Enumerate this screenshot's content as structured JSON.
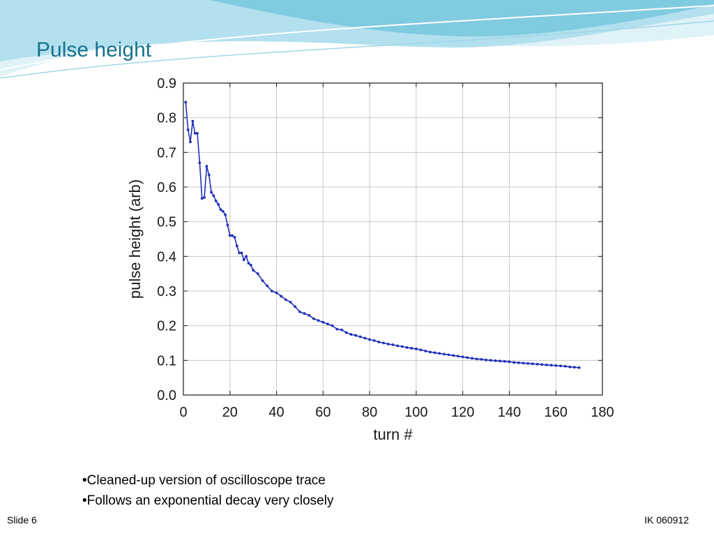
{
  "slide": {
    "title": "Pulse height",
    "bullets": [
      "Cleaned-up version of oscilloscope trace",
      "Follows an exponential decay very closely"
    ],
    "footer_left": "Slide 6",
    "footer_right": "IK 060912",
    "colors": {
      "title": "#17728f",
      "wave_light": "#b9e3ef",
      "wave_mid": "#7fcbe0",
      "wave_dark": "#3fa9c9"
    }
  },
  "chart_data": {
    "type": "line",
    "title": "",
    "xlabel": "turn #",
    "ylabel": "pulse height (arb)",
    "xlim": [
      0,
      180
    ],
    "ylim": [
      0.0,
      0.9
    ],
    "xticks": [
      0,
      20,
      40,
      60,
      80,
      100,
      120,
      140,
      160,
      180
    ],
    "xtick_labels": [
      "0",
      "20",
      "40",
      "60",
      "80",
      "100",
      "120",
      "140",
      "160",
      "180"
    ],
    "yticks": [
      0.0,
      0.1,
      0.2,
      0.3,
      0.4,
      0.5,
      0.6,
      0.7,
      0.8,
      0.9
    ],
    "ytick_labels": [
      "0.0",
      "0.1",
      "0.2",
      "0.3",
      "0.4",
      "0.5",
      "0.6",
      "0.7",
      "0.8",
      "0.9"
    ],
    "grid": true,
    "line_color": "#1f2fb8",
    "series": [
      {
        "x": [
          1,
          2,
          3,
          4,
          5,
          6,
          7,
          8,
          9,
          10,
          11,
          12,
          13,
          14,
          15,
          16,
          17,
          18,
          19,
          20,
          21,
          22,
          23,
          24,
          25,
          26,
          27,
          28,
          29,
          30,
          32,
          34,
          36,
          38,
          40,
          42,
          44,
          46,
          48,
          50,
          52,
          54,
          56,
          58,
          60,
          62,
          64,
          66,
          68,
          70,
          72,
          74,
          76,
          78,
          80,
          82,
          84,
          86,
          88,
          90,
          92,
          94,
          96,
          98,
          100,
          102,
          104,
          106,
          108,
          110,
          112,
          114,
          116,
          118,
          120,
          122,
          124,
          126,
          128,
          130,
          132,
          134,
          136,
          138,
          140,
          142,
          144,
          146,
          148,
          150,
          152,
          154,
          156,
          158,
          160,
          162,
          164,
          166,
          168,
          170
        ],
        "values": [
          0.845,
          0.765,
          0.73,
          0.79,
          0.755,
          0.755,
          0.67,
          0.567,
          0.57,
          0.66,
          0.635,
          0.585,
          0.575,
          0.56,
          0.55,
          0.535,
          0.53,
          0.52,
          0.49,
          0.46,
          0.46,
          0.455,
          0.43,
          0.41,
          0.41,
          0.39,
          0.4,
          0.38,
          0.375,
          0.36,
          0.35,
          0.33,
          0.315,
          0.3,
          0.295,
          0.285,
          0.275,
          0.268,
          0.255,
          0.24,
          0.235,
          0.23,
          0.22,
          0.215,
          0.21,
          0.205,
          0.2,
          0.19,
          0.188,
          0.18,
          0.175,
          0.172,
          0.168,
          0.164,
          0.16,
          0.157,
          0.153,
          0.15,
          0.147,
          0.145,
          0.142,
          0.14,
          0.137,
          0.135,
          0.133,
          0.13,
          0.127,
          0.124,
          0.122,
          0.12,
          0.118,
          0.116,
          0.114,
          0.112,
          0.11,
          0.108,
          0.106,
          0.104,
          0.103,
          0.101,
          0.1,
          0.099,
          0.098,
          0.097,
          0.096,
          0.094,
          0.093,
          0.092,
          0.091,
          0.09,
          0.089,
          0.088,
          0.087,
          0.086,
          0.085,
          0.084,
          0.083,
          0.081,
          0.08,
          0.079
        ]
      }
    ]
  }
}
